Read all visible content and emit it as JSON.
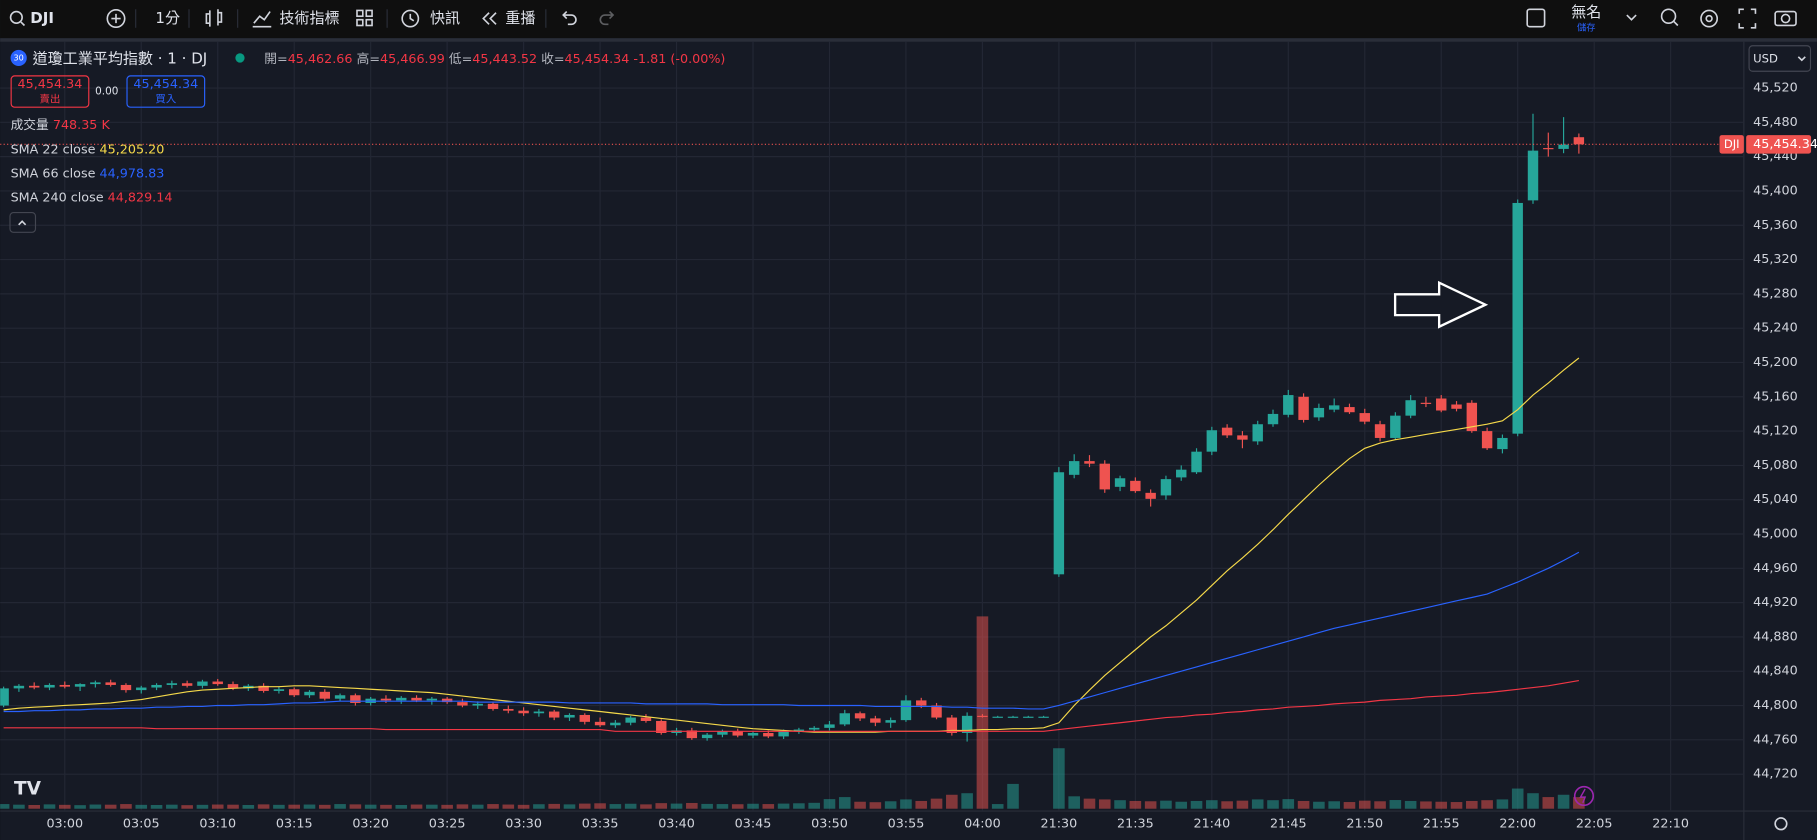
{
  "toolbar": {
    "symbol": "DJI",
    "interval": "1分",
    "indicators": "技術指標",
    "alerts": "快訊",
    "replay": "重播",
    "layout_name": "無名",
    "save": "儲存"
  },
  "legend": {
    "badge": "30",
    "title": "道瓊工業平均指數 · 1 · DJ",
    "open": {
      "label": "開=",
      "value": "45,462.66"
    },
    "high": {
      "label": "高=",
      "value": "45,466.99"
    },
    "low": {
      "label": "低=",
      "value": "45,443.52"
    },
    "close": {
      "label": "收=",
      "value": "45,454.34"
    },
    "change": "-1.81 (-0.00%)",
    "sell_price": "45,454.34",
    "sell": "賣出",
    "spread": "0.00",
    "buy_price": "45,454.34",
    "buy": "買入"
  },
  "price_axis": {
    "currency": "USD"
  },
  "chart_data": {
    "type": "candlestick",
    "up_color": "#26a69a",
    "down_color": "#ef5350",
    "ylim": [
      44677,
      45574
    ],
    "yticks": [
      {
        "value": 45520,
        "label": "45,520"
      },
      {
        "value": 45480,
        "label": "45,480"
      },
      {
        "value": 45440,
        "label": "45,440"
      },
      {
        "value": 45400,
        "label": "45,400"
      },
      {
        "value": 45360,
        "label": "45,360"
      },
      {
        "value": 45320,
        "label": "45,320"
      },
      {
        "value": 45280,
        "label": "45,280"
      },
      {
        "value": 45240,
        "label": "45,240"
      },
      {
        "value": 45200,
        "label": "45,200"
      },
      {
        "value": 45160,
        "label": "45,160"
      },
      {
        "value": 45120,
        "label": "45,120"
      },
      {
        "value": 45080,
        "label": "45,080"
      },
      {
        "value": 45040,
        "label": "45,040"
      },
      {
        "value": 45000,
        "label": "45,000"
      },
      {
        "value": 44960,
        "label": "44,960"
      },
      {
        "value": 44920,
        "label": "44,920"
      },
      {
        "value": 44880,
        "label": "44,880"
      },
      {
        "value": 44840,
        "label": "44,840"
      },
      {
        "value": 44800,
        "label": "44,800"
      },
      {
        "value": 44760,
        "label": "44,760"
      },
      {
        "value": 44720,
        "label": "44,720"
      }
    ],
    "grid": true,
    "categories": [
      null,
      null,
      null,
      null,
      "03:00",
      null,
      null,
      null,
      null,
      "03:05",
      null,
      null,
      null,
      null,
      "03:10",
      null,
      null,
      null,
      null,
      "03:15",
      null,
      null,
      null,
      null,
      "03:20",
      null,
      null,
      null,
      null,
      "03:25",
      null,
      null,
      null,
      null,
      "03:30",
      null,
      null,
      null,
      null,
      "03:35",
      null,
      null,
      null,
      null,
      "03:40",
      null,
      null,
      null,
      null,
      "03:45",
      null,
      null,
      null,
      null,
      "03:50",
      null,
      null,
      null,
      null,
      "03:55",
      null,
      null,
      null,
      null,
      "04:00",
      null,
      null,
      null,
      null,
      "21:30",
      null,
      null,
      null,
      null,
      "21:35",
      null,
      null,
      null,
      null,
      "21:40",
      null,
      null,
      null,
      null,
      "21:45",
      null,
      null,
      null,
      null,
      "21:50",
      null,
      null,
      null,
      null,
      "21:55",
      null,
      null,
      null,
      null,
      "22:00",
      null,
      null,
      null,
      null,
      "22:05",
      null,
      null,
      null,
      null,
      "22:10"
    ],
    "ohlc": [
      [
        44800,
        44822,
        44798,
        44820
      ],
      [
        44820,
        44825,
        44816,
        44823
      ],
      [
        44823,
        44827,
        44819,
        44821
      ],
      [
        44821,
        44826,
        44818,
        44824
      ],
      [
        44824,
        44828,
        44820,
        44822
      ],
      [
        44822,
        44826,
        44817,
        44825
      ],
      [
        44825,
        44829,
        44821,
        44827
      ],
      [
        44827,
        44830,
        44822,
        44824
      ],
      [
        44824,
        44826,
        44815,
        44818
      ],
      [
        44818,
        44823,
        44814,
        44821
      ],
      [
        44821,
        44826,
        44818,
        44824
      ],
      [
        44824,
        44829,
        44820,
        44826
      ],
      [
        44826,
        44829,
        44821,
        44823
      ],
      [
        44823,
        44830,
        44820,
        44828
      ],
      [
        44828,
        44831,
        44823,
        44825
      ],
      [
        44825,
        44828,
        44818,
        44820
      ],
      [
        44820,
        44825,
        44817,
        44823
      ],
      [
        44823,
        44826,
        44815,
        44817
      ],
      [
        44817,
        44822,
        44814,
        44819
      ],
      [
        44819,
        44821,
        44810,
        44812
      ],
      [
        44812,
        44818,
        44809,
        44816
      ],
      [
        44816,
        44819,
        44806,
        44808
      ],
      [
        44808,
        44814,
        44805,
        44812
      ],
      [
        44812,
        44814,
        44800,
        44803
      ],
      [
        44803,
        44810,
        44800,
        44808
      ],
      [
        44808,
        44812,
        44803,
        44806
      ],
      [
        44806,
        44811,
        44802,
        44809
      ],
      [
        44809,
        44812,
        44804,
        44806
      ],
      [
        44806,
        44810,
        44801,
        44808
      ],
      [
        44808,
        44810,
        44802,
        44804
      ],
      [
        44804,
        44808,
        44798,
        44800
      ],
      [
        44800,
        44805,
        44796,
        44802
      ],
      [
        44802,
        44804,
        44794,
        44796
      ],
      [
        44796,
        44800,
        44791,
        44794
      ],
      [
        44794,
        44798,
        44788,
        44791
      ],
      [
        44791,
        44796,
        44787,
        44793
      ],
      [
        44793,
        44795,
        44783,
        44786
      ],
      [
        44786,
        44791,
        44782,
        44789
      ],
      [
        44789,
        44791,
        44778,
        44781
      ],
      [
        44781,
        44786,
        44775,
        44777
      ],
      [
        44777,
        44783,
        44774,
        44780
      ],
      [
        44780,
        44788,
        44777,
        44786
      ],
      [
        44786,
        44790,
        44780,
        44782
      ],
      [
        44782,
        44784,
        44766,
        44768
      ],
      [
        44768,
        44774,
        44765,
        44771
      ],
      [
        44771,
        44774,
        44760,
        44762
      ],
      [
        44762,
        44768,
        44759,
        44766
      ],
      [
        44766,
        44772,
        44763,
        44770
      ],
      [
        44770,
        44773,
        44763,
        44765
      ],
      [
        44765,
        44770,
        44762,
        44768
      ],
      [
        44768,
        44771,
        44762,
        44764
      ],
      [
        44764,
        44772,
        44761,
        44770
      ],
      [
        44770,
        44774,
        44767,
        44772
      ],
      [
        44772,
        44776,
        44769,
        44774
      ],
      [
        44774,
        44782,
        44771,
        44778
      ],
      [
        44778,
        44795,
        44776,
        44791
      ],
      [
        44791,
        44793,
        44782,
        44785
      ],
      [
        44785,
        44788,
        44776,
        44780
      ],
      [
        44780,
        44786,
        44774,
        44783
      ],
      [
        44783,
        44812,
        44781,
        44806
      ],
      [
        44806,
        44809,
        44797,
        44800
      ],
      [
        44800,
        44803,
        44784,
        44786
      ],
      [
        44786,
        44789,
        44765,
        44768
      ],
      [
        44768,
        44792,
        44758,
        44788
      ],
      [
        44788,
        44790,
        44786,
        44787
      ],
      [
        44787,
        44788,
        44786,
        44787
      ],
      [
        44787,
        44788,
        44786,
        44787
      ],
      [
        44787,
        44788,
        44786,
        44787
      ],
      [
        44787,
        44788,
        44786,
        44787
      ],
      [
        44953,
        45078,
        44950,
        45072
      ],
      [
        45069,
        45093,
        45065,
        45085
      ],
      [
        45085,
        45092,
        45078,
        45082
      ],
      [
        45082,
        45086,
        45048,
        45052
      ],
      [
        45055,
        45068,
        45050,
        45065
      ],
      [
        45062,
        45066,
        45048,
        45050
      ],
      [
        45048,
        45052,
        45032,
        45041
      ],
      [
        45045,
        45068,
        45040,
        45064
      ],
      [
        45066,
        45080,
        45062,
        45075
      ],
      [
        45072,
        45100,
        45070,
        45096
      ],
      [
        45096,
        45125,
        45092,
        45121
      ],
      [
        45124,
        45128,
        45112,
        45115
      ],
      [
        45115,
        45120,
        45100,
        45110
      ],
      [
        45108,
        45132,
        45104,
        45128
      ],
      [
        45128,
        45145,
        45125,
        45140
      ],
      [
        45139,
        45168,
        45136,
        45162
      ],
      [
        45160,
        45164,
        45130,
        45133
      ],
      [
        45136,
        45152,
        45132,
        45147
      ],
      [
        45145,
        45158,
        45142,
        45150
      ],
      [
        45148,
        45152,
        45140,
        45142
      ],
      [
        45141,
        45146,
        45128,
        45131
      ],
      [
        45128,
        45132,
        45108,
        45112
      ],
      [
        45112,
        45142,
        45110,
        45138
      ],
      [
        45138,
        45162,
        45135,
        45156
      ],
      [
        45153,
        45160,
        45148,
        45152
      ],
      [
        45158,
        45162,
        45142,
        45144
      ],
      [
        45151,
        45155,
        45143,
        45146
      ],
      [
        45153,
        45156,
        45118,
        45120
      ],
      [
        45120,
        45124,
        45098,
        45100
      ],
      [
        45099,
        45116,
        45094,
        45112
      ],
      [
        45117,
        45390,
        45114,
        45386
      ],
      [
        45389,
        45490,
        45385,
        45447
      ],
      [
        45450,
        45468,
        45440,
        45449
      ],
      [
        45449,
        45486,
        45444,
        45454
      ],
      [
        45462.66,
        45466.99,
        45443.52,
        45454.34
      ],
      null,
      null,
      null,
      null,
      null,
      null
    ],
    "volume": {
      "name": "成交量",
      "legend_value": "748.35 K",
      "values": [
        300000,
        260000,
        240000,
        280000,
        250000,
        230000,
        270000,
        260000,
        300000,
        250000,
        240000,
        260000,
        230000,
        250000,
        270000,
        260000,
        240000,
        280000,
        250000,
        260000,
        270000,
        250000,
        300000,
        280000,
        260000,
        250000,
        240000,
        270000,
        260000,
        250000,
        280000,
        260000,
        300000,
        270000,
        250000,
        290000,
        310000,
        280000,
        330000,
        350000,
        300000,
        320000,
        280000,
        360000,
        330000,
        370000,
        310000,
        300000,
        290000,
        320000,
        300000,
        330000,
        350000,
        380000,
        620000,
        750000,
        450000,
        420000,
        480000,
        600000,
        500000,
        650000,
        900000,
        1000000,
        12400000,
        300000,
        1600000,
        0,
        0,
        3900000,
        800000,
        650000,
        600000,
        550000,
        500000,
        480000,
        520000,
        450000,
        500000,
        550000,
        480000,
        520000,
        600000,
        550000,
        620000,
        500000,
        450000,
        480000,
        430000,
        520000,
        480000,
        560000,
        500000,
        470000,
        450000,
        430000,
        500000,
        550000,
        600000,
        1300000,
        1000000,
        750000,
        900000,
        748350,
        null,
        null,
        null,
        null,
        null,
        null
      ]
    },
    "series": [
      {
        "name": "SMA 22 close",
        "color": "#f5d94a",
        "legend_value": "45,205.20",
        "values": [
          44795,
          44797,
          44798,
          44799,
          44800,
          44801,
          44802,
          44803,
          44805,
          44807,
          44810,
          44813,
          44816,
          44818,
          44819,
          44820,
          44821,
          44822,
          44822,
          44823,
          44823,
          44822,
          44821,
          44820,
          44819,
          44818,
          44817,
          44816,
          44815,
          44813,
          44811,
          44809,
          44807,
          44805,
          44803,
          44801,
          44799,
          44797,
          44795,
          44793,
          44791,
          44789,
          44787,
          44785,
          44783,
          44781,
          44779,
          44777,
          44775,
          44773,
          44772,
          44771,
          44770,
          44769,
          44769,
          44769,
          44769,
          44769,
          44770,
          44770,
          44770,
          44770,
          44771,
          44771,
          44772,
          44772,
          44773,
          44773,
          44774,
          44780,
          44800,
          44818,
          44835,
          44850,
          44865,
          44880,
          44893,
          44908,
          44923,
          44940,
          44957,
          44972,
          44988,
          45005,
          45023,
          45040,
          45057,
          45073,
          45088,
          45100,
          45106,
          45110,
          45113,
          45116,
          45119,
          45122,
          45125,
          45128,
          45132,
          45145,
          45162,
          45176,
          45191,
          45205.2,
          null,
          null,
          null,
          null,
          null,
          null
        ]
      },
      {
        "name": "SMA 66 close",
        "color": "#2962ff",
        "legend_value": "44,978.83",
        "values": [
          44793,
          44793,
          44794,
          44794,
          44795,
          44795,
          44796,
          44796,
          44797,
          44797,
          44798,
          44798,
          44799,
          44799,
          44800,
          44800,
          44801,
          44801,
          44802,
          44803,
          44803,
          44804,
          44805,
          44805,
          44805,
          44805,
          44805,
          44805,
          44805,
          44805,
          44805,
          44804,
          44804,
          44804,
          44804,
          44804,
          44804,
          44803,
          44803,
          44803,
          44803,
          44803,
          44802,
          44802,
          44802,
          44802,
          44802,
          44801,
          44801,
          44801,
          44801,
          44801,
          44800,
          44800,
          44800,
          44800,
          44800,
          44799,
          44799,
          44799,
          44799,
          44799,
          44798,
          44798,
          44797,
          44797,
          44797,
          44796,
          44796,
          44800,
          44805,
          44810,
          44815,
          44820,
          44825,
          44830,
          44835,
          44840,
          44845,
          44850,
          44855,
          44860,
          44865,
          44870,
          44875,
          44880,
          44885,
          44890,
          44894,
          44898,
          44902,
          44906,
          44910,
          44914,
          44918,
          44922,
          44926,
          44930,
          44937,
          44944,
          44952,
          44960,
          44969,
          44978.83,
          null,
          null,
          null,
          null,
          null,
          null
        ]
      },
      {
        "name": "SMA 240 close",
        "color": "#f23645",
        "legend_value": "44,829.14",
        "values": [
          44774,
          44774,
          44774,
          44774,
          44774,
          44774,
          44774,
          44774,
          44774,
          44774,
          44773,
          44773,
          44773,
          44773,
          44773,
          44773,
          44773,
          44773,
          44773,
          44773,
          44773,
          44773,
          44773,
          44773,
          44773,
          44772,
          44772,
          44772,
          44772,
          44772,
          44772,
          44772,
          44772,
          44772,
          44772,
          44772,
          44772,
          44772,
          44772,
          44772,
          44770,
          44770,
          44770,
          44770,
          44770,
          44770,
          44770,
          44770,
          44770,
          44770,
          44770,
          44770,
          44770,
          44770,
          44770,
          44770,
          44770,
          44770,
          44770,
          44770,
          44770,
          44770,
          44770,
          44770,
          44770,
          44770,
          44770,
          44770,
          44770,
          44772,
          44774,
          44776,
          44778,
          44780,
          44782,
          44784,
          44786,
          44787,
          44789,
          44790,
          44792,
          44793,
          44795,
          44796,
          44798,
          44799,
          44800,
          44802,
          44803,
          44804,
          44806,
          44807,
          44808,
          44810,
          44811,
          44812,
          44814,
          44815,
          44817,
          44819,
          44821,
          44823,
          44826,
          44829.14,
          null,
          null,
          null,
          null,
          null,
          null
        ]
      }
    ],
    "symbol_tag": "DJI",
    "last_price_label": "45,454.34"
  }
}
